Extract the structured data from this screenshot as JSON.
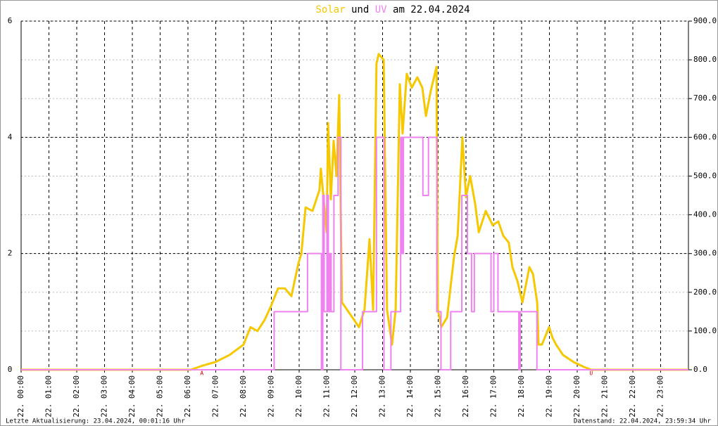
{
  "chart_data": {
    "type": "line",
    "title_date": "am 22.04.2024",
    "title_connector": "und",
    "footer_left": "Letzte Aktualisierung: 23.04.2024, 00:01:16 Uhr",
    "footer_right": "Datenstand: 22.04.2024, 23:59:34 Uhr",
    "xlim": [
      0,
      24
    ],
    "xticks": [
      {
        "value": 0,
        "label": "22. 00:00"
      },
      {
        "value": 1,
        "label": "22. 01:00"
      },
      {
        "value": 2,
        "label": "22. 02:00"
      },
      {
        "value": 3,
        "label": "22. 03:00"
      },
      {
        "value": 4,
        "label": "22. 04:00"
      },
      {
        "value": 5,
        "label": "22. 05:00"
      },
      {
        "value": 6,
        "label": "22. 06:00"
      },
      {
        "value": 7,
        "label": "22. 07:00"
      },
      {
        "value": 8,
        "label": "22. 08:00"
      },
      {
        "value": 9,
        "label": "22. 09:00"
      },
      {
        "value": 10,
        "label": "22. 10:00"
      },
      {
        "value": 11,
        "label": "22. 11:00"
      },
      {
        "value": 12,
        "label": "22. 12:00"
      },
      {
        "value": 13,
        "label": "22. 13:00"
      },
      {
        "value": 14,
        "label": "22. 14:00"
      },
      {
        "value": 15,
        "label": "22. 15:00"
      },
      {
        "value": 16,
        "label": "22. 16:00"
      },
      {
        "value": 17,
        "label": "22. 17:00"
      },
      {
        "value": 18,
        "label": "22. 18:00"
      },
      {
        "value": 19,
        "label": "22. 19:00"
      },
      {
        "value": 20,
        "label": "22. 20:00"
      },
      {
        "value": 21,
        "label": "22. 21:00"
      },
      {
        "value": 22,
        "label": "22. 22:00"
      },
      {
        "value": 23,
        "label": "22. 23:00"
      }
    ],
    "ylim": [
      0,
      6
    ],
    "yticks": [
      0,
      2,
      4,
      6
    ],
    "y2lim": [
      0,
      900
    ],
    "y2ticks": [
      {
        "value": 0,
        "label": "0.0"
      },
      {
        "value": 100,
        "label": "100.0"
      },
      {
        "value": 200,
        "label": "200.0"
      },
      {
        "value": 300,
        "label": "300.0"
      },
      {
        "value": 400,
        "label": "400.0"
      },
      {
        "value": 500,
        "label": "500.0"
      },
      {
        "value": 600,
        "label": "600.0"
      },
      {
        "value": 700,
        "label": "700.0"
      },
      {
        "value": 800,
        "label": "800.0"
      },
      {
        "value": 900,
        "label": "900.0"
      }
    ],
    "grid": true,
    "annotations": [
      {
        "text": "A",
        "x": 6.5
      },
      {
        "text": "U",
        "x": 20.5
      }
    ],
    "series": [
      {
        "name": "Solar",
        "color": "#f5c800",
        "axis": "y2",
        "step": false,
        "x": [
          0,
          6.1,
          6.3,
          6.5,
          6.99,
          7.49,
          8.0,
          8.25,
          8.5,
          8.76,
          8.99,
          9.24,
          9.49,
          9.72,
          9.97,
          10.08,
          10.23,
          10.48,
          10.73,
          10.78,
          10.99,
          11.04,
          11.14,
          11.24,
          11.34,
          11.44,
          11.54,
          11.97,
          12.15,
          12.35,
          12.53,
          12.66,
          12.78,
          12.86,
          13.04,
          13.16,
          13.34,
          13.47,
          13.62,
          13.72,
          13.87,
          14.05,
          14.25,
          14.43,
          14.56,
          14.73,
          14.94,
          14.99,
          15.11,
          15.32,
          15.57,
          15.7,
          15.87,
          16.0,
          16.15,
          16.33,
          16.46,
          16.71,
          16.96,
          17.16,
          17.34,
          17.54,
          17.67,
          17.85,
          18.03,
          18.28,
          18.41,
          18.56,
          18.61,
          18.73,
          18.99,
          19.11,
          19.24,
          19.49,
          19.87,
          20.25,
          20.51,
          24
        ],
        "values": [
          0,
          0,
          5,
          10,
          20,
          38,
          65,
          110,
          100,
          129,
          165,
          210,
          210,
          190,
          274,
          300,
          419,
          410,
          464,
          519,
          355,
          637,
          440,
          591,
          500,
          709,
          174,
          129,
          110,
          155,
          337,
          155,
          790,
          815,
          800,
          155,
          65,
          155,
          737,
          610,
          764,
          728,
          755,
          728,
          655,
          719,
          782,
          155,
          110,
          135,
          292,
          346,
          600,
          446,
          500,
          428,
          355,
          410,
          373,
          383,
          346,
          328,
          265,
          229,
          174,
          265,
          247,
          174,
          65,
          65,
          110,
          83,
          65,
          38,
          20,
          7,
          0,
          0
        ]
      },
      {
        "name": "UV",
        "color": "#ee82ee",
        "axis": "y",
        "step": true,
        "x": [
          0,
          9.1,
          10.3,
          10.8,
          10.85,
          10.9,
          11.0,
          11.05,
          11.1,
          11.15,
          11.25,
          11.4,
          11.5,
          12.28,
          12.78,
          13.05,
          13.3,
          13.65,
          13.7,
          13.75,
          14.45,
          14.65,
          14.95,
          15.1,
          15.45,
          15.85,
          16.05,
          16.2,
          16.3,
          16.9,
          17.0,
          17.15,
          17.9,
          17.95,
          18.55,
          24
        ],
        "values": [
          0,
          1,
          2,
          0,
          3,
          1,
          3,
          1,
          2,
          1,
          3,
          4,
          0,
          1,
          4,
          0,
          1,
          4,
          2,
          4,
          3,
          4,
          1,
          0,
          1,
          3,
          2,
          1,
          2,
          1,
          2,
          1,
          0,
          1,
          0,
          0
        ]
      }
    ]
  }
}
